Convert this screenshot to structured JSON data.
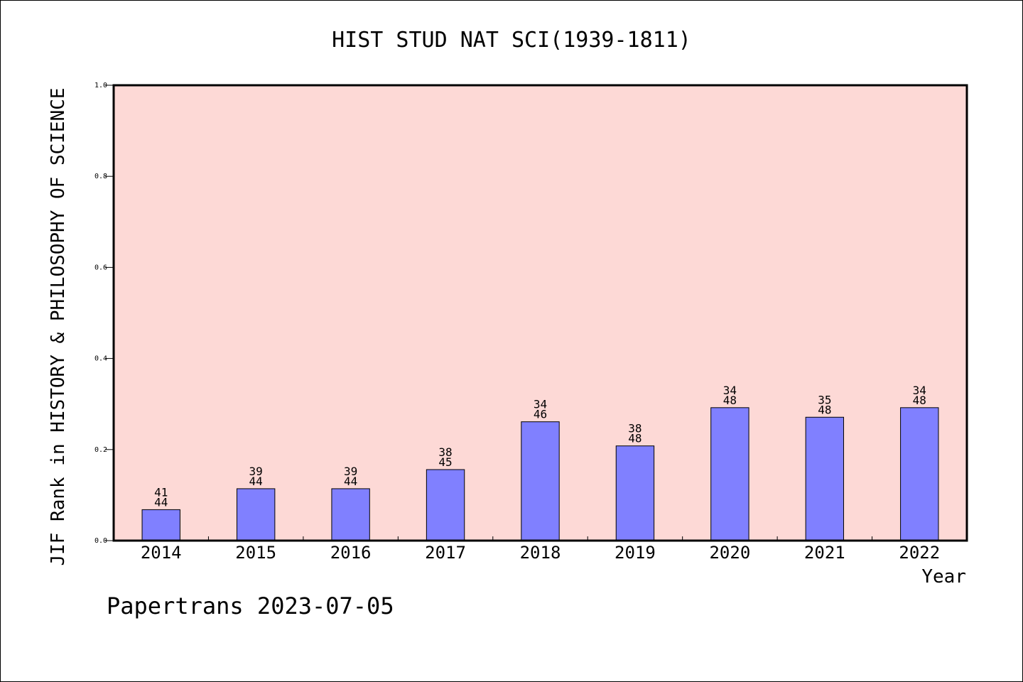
{
  "chart_data": {
    "type": "bar",
    "title": "HIST STUD NAT SCI(1939-1811)",
    "xlabel": "Year",
    "ylabel": "JIF Rank in HISTORY & PHILOSOPHY OF SCIENCE",
    "ylim": [
      0,
      1.0
    ],
    "yticks": [
      "0.0",
      "0.2",
      "0.4",
      "0.6",
      "0.8",
      "1.0"
    ],
    "categories": [
      "2014",
      "2015",
      "2016",
      "2017",
      "2018",
      "2019",
      "2020",
      "2021",
      "2022"
    ],
    "values": [
      0.068,
      0.114,
      0.114,
      0.156,
      0.261,
      0.208,
      0.292,
      0.271,
      0.292
    ],
    "labels": [
      [
        "41",
        "44"
      ],
      [
        "39",
        "44"
      ],
      [
        "39",
        "44"
      ],
      [
        "38",
        "45"
      ],
      [
        "34",
        "46"
      ],
      [
        "38",
        "48"
      ],
      [
        "34",
        "48"
      ],
      [
        "35",
        "48"
      ],
      [
        "34",
        "48"
      ]
    ],
    "grid": false,
    "legend": "none",
    "colors": {
      "plot_background": "#fdd9d6",
      "bar_fill": "#8080ff",
      "bar_stroke": "#000000",
      "axis": "#000000",
      "text": "#000000"
    }
  },
  "footer": {
    "credit": "Papertrans 2023-07-05"
  }
}
